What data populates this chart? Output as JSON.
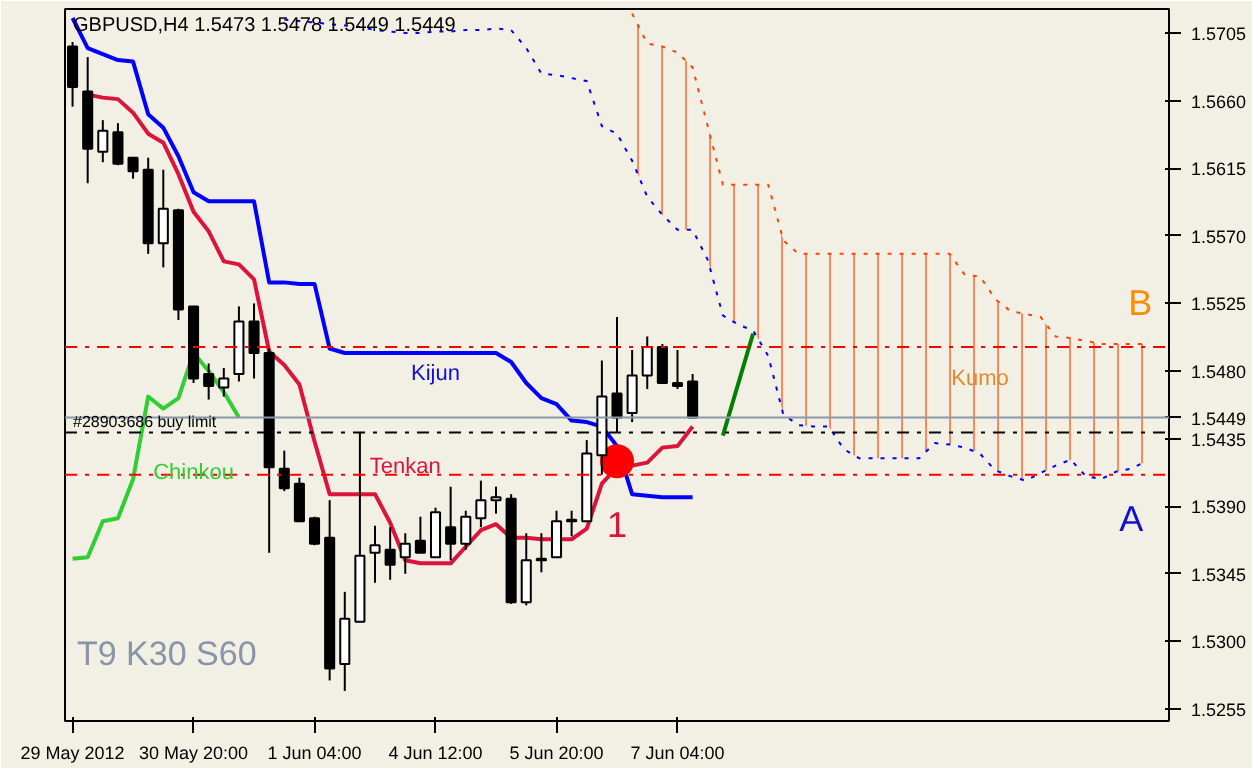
{
  "chart_data": {
    "type": "candlestick",
    "title": "GBPUSD,H4  1.5473 1.5478 1.5449 1.5449",
    "categories": [
      "29 May 2012",
      null,
      null,
      null,
      null,
      null,
      null,
      null,
      "30 May 20:00",
      null,
      null,
      null,
      null,
      null,
      null,
      null,
      "1 Jun 04:00",
      null,
      null,
      null,
      null,
      null,
      null,
      null,
      "4 Jun 12:00",
      null,
      null,
      null,
      null,
      null,
      null,
      null,
      "5 Jun 20:00",
      null,
      null,
      null,
      null,
      null,
      null,
      null,
      "7 Jun 04:00",
      null,
      null,
      null,
      null,
      null,
      null,
      null,
      null,
      null,
      null,
      null,
      null,
      null,
      null,
      null,
      null,
      null,
      null,
      null,
      null,
      null,
      null,
      null,
      null,
      null,
      null,
      null,
      null,
      null,
      null,
      null,
      null
    ],
    "ohlc": [
      [
        1.5696,
        1.5699,
        1.5656,
        1.5669
      ],
      [
        1.5666,
        1.5689,
        1.5605,
        1.5628
      ],
      [
        1.5626,
        1.5647,
        1.5619,
        1.564
      ],
      [
        1.5639,
        1.5645,
        1.5617,
        1.5618
      ],
      [
        1.5622,
        1.5622,
        1.5608,
        1.5613
      ],
      [
        1.5614,
        1.5622,
        1.5558,
        1.5565
      ],
      [
        1.5565,
        1.5614,
        1.5549,
        1.5588
      ],
      [
        1.5587,
        1.5588,
        1.5514,
        1.5521
      ],
      [
        1.5523,
        1.5523,
        1.5472,
        1.5475
      ],
      [
        1.5478,
        1.5485,
        1.5461,
        1.547
      ],
      [
        1.5469,
        1.5482,
        1.5463,
        1.5475
      ],
      [
        1.5478,
        1.5523,
        1.5473,
        1.5513
      ],
      [
        1.5513,
        1.5525,
        1.5475,
        1.5492
      ],
      [
        1.5492,
        1.5495,
        1.5359,
        1.5416
      ],
      [
        1.5415,
        1.5427,
        1.54,
        1.5402
      ],
      [
        1.5405,
        1.5409,
        1.538,
        1.538
      ],
      [
        1.5382,
        1.5383,
        1.5364,
        1.5365
      ],
      [
        1.5369,
        1.5394,
        1.5274,
        1.5282
      ],
      [
        1.5285,
        1.5333,
        1.5267,
        1.5315
      ],
      [
        1.5313,
        1.5439,
        1.5313,
        1.5357
      ],
      [
        1.5359,
        1.5377,
        1.5339,
        1.5364
      ],
      [
        1.5361,
        1.5376,
        1.5341,
        1.5351
      ],
      [
        1.5356,
        1.5372,
        1.5345,
        1.5365
      ],
      [
        1.5367,
        1.5383,
        1.5359,
        1.5359
      ],
      [
        1.5356,
        1.5389,
        1.5356,
        1.5386
      ],
      [
        1.5376,
        1.5403,
        1.5354,
        1.5365
      ],
      [
        1.5365,
        1.5387,
        1.5361,
        1.5383
      ],
      [
        1.5382,
        1.5407,
        1.5376,
        1.5394
      ],
      [
        1.5394,
        1.5403,
        1.5385,
        1.5396
      ],
      [
        1.5395,
        1.5398,
        1.5325,
        1.5326
      ],
      [
        1.5326,
        1.5372,
        1.5324,
        1.5354
      ],
      [
        1.5355,
        1.5372,
        1.5346,
        1.5354
      ],
      [
        1.5356,
        1.5387,
        1.5356,
        1.538
      ],
      [
        1.5381,
        1.5387,
        1.537,
        1.538
      ],
      [
        1.538,
        1.5434,
        1.538,
        1.5425
      ],
      [
        1.5424,
        1.5487,
        1.5411,
        1.5463
      ],
      [
        1.5465,
        1.5516,
        1.5439,
        1.5449
      ],
      [
        1.5452,
        1.5494,
        1.5446,
        1.5477
      ],
      [
        1.5477,
        1.5503,
        1.5468,
        1.5496
      ],
      [
        1.5496,
        1.5498,
        1.5472,
        1.5472
      ],
      [
        1.5472,
        1.5494,
        1.5468,
        1.547
      ],
      [
        1.5473,
        1.5478,
        1.5449,
        1.5449
      ],
      null,
      null,
      null,
      null,
      null,
      null,
      null,
      null,
      null,
      null,
      null,
      null,
      null,
      null,
      null,
      null,
      null,
      null,
      null,
      null,
      null,
      null,
      null,
      null,
      null,
      null,
      null,
      null,
      null,
      null,
      null
    ],
    "series": [
      {
        "type": "line",
        "color": "#0000ff",
        "line_style": "solid",
        "values": [
          1.5715,
          1.5695,
          1.5691,
          1.5687,
          1.5686,
          1.5651,
          1.5642,
          1.5623,
          1.5599,
          1.5593,
          1.5593,
          1.5593,
          1.5593,
          1.5539,
          1.5539,
          1.5538,
          1.5538,
          1.5495,
          1.5492,
          1.5492,
          1.5492,
          1.5492,
          1.5492,
          1.5492,
          1.5492,
          1.5492,
          1.5492,
          1.5492,
          1.5492,
          1.5486,
          1.5472,
          1.5462,
          1.5458,
          1.5447,
          1.5446,
          1.5443,
          1.543,
          1.5398,
          1.5397,
          1.5396,
          1.5396,
          1.5396,
          null,
          null,
          null,
          null,
          null,
          null,
          null,
          null,
          null,
          null,
          null,
          null,
          null,
          null,
          null,
          null,
          null,
          null,
          null,
          null,
          null,
          null,
          null,
          null,
          null,
          null,
          null,
          null,
          null,
          null,
          null
        ]
      },
      {
        "type": "line",
        "color": "#dc143c",
        "line_style": "solid",
        "values": [
          null,
          1.5664,
          1.5662,
          1.5661,
          1.5652,
          1.5638,
          1.5632,
          1.5611,
          1.5586,
          1.5573,
          1.5553,
          1.5551,
          1.5541,
          1.5493,
          1.5484,
          1.5471,
          1.5433,
          1.5398,
          1.5398,
          1.5398,
          1.5398,
          1.5379,
          1.5354,
          1.5352,
          1.5352,
          1.5352,
          1.5363,
          1.5374,
          1.5378,
          1.5369,
          1.5369,
          1.5368,
          1.5368,
          1.5368,
          1.5375,
          1.5405,
          1.5416,
          1.5417,
          1.5419,
          1.5429,
          1.543,
          1.5443,
          null,
          null,
          null,
          null,
          null,
          null,
          null,
          null,
          null,
          null,
          null,
          null,
          null,
          null,
          null,
          null,
          null,
          null,
          null,
          null,
          null,
          null,
          null,
          null,
          null,
          null,
          null,
          null,
          null,
          null,
          null
        ]
      },
      {
        "type": "line",
        "color": "#32cd32",
        "line_style": "solid",
        "values": [
          1.5355,
          1.5356,
          1.538,
          1.5382,
          1.5408,
          1.5463,
          1.5455,
          1.5462,
          1.5492,
          1.548,
          1.5466,
          1.5449,
          null,
          null,
          null,
          null,
          null,
          null,
          null,
          null,
          null,
          null,
          null,
          null,
          null,
          null,
          null,
          null,
          null,
          null,
          null,
          null,
          null,
          null,
          null,
          null,
          null,
          null,
          null,
          null,
          null,
          null,
          null,
          null,
          null,
          null,
          null,
          null,
          null,
          null,
          null,
          null,
          null,
          null,
          null,
          null,
          null,
          null,
          null,
          null,
          null,
          null,
          null,
          null,
          null,
          null,
          null,
          null,
          null,
          null,
          null,
          null,
          null
        ]
      },
      {
        "type": "line",
        "color": "#008000",
        "line_style": "solid",
        "values": [
          null,
          null,
          null,
          null,
          null,
          null,
          null,
          null,
          null,
          null,
          null,
          null,
          null,
          null,
          null,
          null,
          null,
          null,
          null,
          null,
          null,
          null,
          null,
          null,
          null,
          null,
          null,
          null,
          null,
          null,
          null,
          null,
          null,
          null,
          null,
          null,
          null,
          null,
          null,
          null,
          null,
          null,
          null,
          1.5437,
          1.5471,
          1.5505,
          null,
          null,
          null,
          null,
          null,
          null,
          null,
          null,
          null,
          null,
          null,
          null,
          null,
          null,
          null,
          null,
          null,
          null,
          null,
          null,
          null,
          null,
          null,
          null,
          null,
          null,
          null
        ]
      },
      {
        "type": "line",
        "color": "#0000ff",
        "line_style": "dotted",
        "values": [
          null,
          null,
          null,
          null,
          null,
          null,
          null,
          null,
          null,
          null,
          null,
          null,
          null,
          null,
          1.5714,
          1.5713,
          1.5712,
          1.5711,
          1.571,
          1.5709,
          1.5707,
          1.5706,
          1.5705,
          1.5705,
          1.5706,
          1.5706,
          1.5707,
          1.5707,
          1.5708,
          1.5707,
          1.5695,
          1.5678,
          1.5677,
          1.5675,
          1.5673,
          1.5643,
          1.5638,
          1.562,
          1.5596,
          1.5584,
          1.5574,
          1.5574,
          1.5554,
          1.5517,
          1.5511,
          1.5507,
          1.549,
          1.5451,
          1.5444,
          1.5443,
          1.5443,
          1.5428,
          1.5422,
          1.5422,
          1.5422,
          1.5422,
          1.5422,
          1.5432,
          1.5431,
          1.5429,
          1.5425,
          1.5414,
          1.541,
          1.5407,
          1.5412,
          1.5417,
          1.5421,
          1.541,
          1.5408,
          1.5413,
          1.5415,
          1.542,
          null
        ]
      },
      {
        "type": "line",
        "color": "#ff4500",
        "line_style": "dotted",
        "lower": [
          null,
          null,
          null,
          null,
          null,
          null,
          null,
          null,
          null,
          null,
          null,
          null,
          null,
          null,
          null,
          null,
          null,
          null,
          null,
          null,
          null,
          null,
          null,
          null,
          null,
          null,
          null,
          null,
          null,
          null,
          null,
          null,
          null,
          null,
          null,
          null,
          null,
          1.562,
          1.5596,
          1.5584,
          1.5574,
          1.5574,
          1.5554,
          1.5517,
          1.5511,
          1.5507,
          1.549,
          1.5451,
          1.5444,
          1.5443,
          1.5443,
          1.5428,
          1.5422,
          1.5422,
          1.5422,
          1.5422,
          1.5422,
          1.5432,
          1.5431,
          1.5429,
          1.5425,
          1.5414,
          1.541,
          1.5407,
          1.5412,
          1.5417,
          1.5421,
          1.541,
          1.5408,
          1.5413,
          1.5415,
          1.542,
          null
        ],
        "upper": [
          null,
          null,
          null,
          null,
          null,
          null,
          null,
          null,
          null,
          null,
          null,
          null,
          null,
          null,
          null,
          null,
          null,
          null,
          null,
          null,
          null,
          null,
          null,
          null,
          null,
          null,
          null,
          null,
          null,
          null,
          null,
          null,
          null,
          null,
          null,
          null,
          null,
          1.5718,
          1.5698,
          1.5696,
          1.5692,
          1.5682,
          1.5643,
          1.5604,
          1.5604,
          1.5604,
          1.5604,
          1.5567,
          1.5558,
          1.5558,
          1.5558,
          1.5558,
          1.5558,
          1.5558,
          1.5558,
          1.5558,
          1.5558,
          1.5558,
          1.5558,
          1.5544,
          1.5543,
          1.5528,
          1.552,
          1.5518,
          1.5516,
          1.5503,
          1.5502,
          1.55,
          1.5498,
          1.5498,
          1.5498,
          1.5498,
          null
        ],
        "values": [
          null,
          null,
          null,
          null,
          null,
          null,
          null,
          null,
          null,
          null,
          null,
          null,
          null,
          null,
          null,
          null,
          null,
          null,
          null,
          null,
          null,
          null,
          null,
          null,
          null,
          null,
          null,
          null,
          null,
          null,
          null,
          null,
          null,
          null,
          null,
          null,
          null,
          1.5718,
          1.5698,
          1.5696,
          1.5692,
          1.5682,
          1.5643,
          1.5604,
          1.5604,
          1.5604,
          1.5604,
          1.5567,
          1.5558,
          1.5558,
          1.5558,
          1.5558,
          1.5558,
          1.5558,
          1.5558,
          1.5558,
          1.5558,
          1.5558,
          1.5558,
          1.5544,
          1.5543,
          1.5528,
          1.552,
          1.5518,
          1.5516,
          1.5503,
          1.5502,
          1.55,
          1.5498,
          1.5498,
          1.5498,
          1.5498,
          null
        ]
      },
      {
        "type": "scatter",
        "color": "#ff0000",
        "marker": "circle",
        "values": [
          null,
          null,
          null,
          null,
          null,
          null,
          null,
          null,
          null,
          null,
          null,
          null,
          null,
          null,
          null,
          null,
          null,
          null,
          null,
          null,
          null,
          null,
          null,
          null,
          null,
          null,
          null,
          null,
          null,
          null,
          null,
          null,
          null,
          null,
          null,
          null,
          1.542,
          null,
          null,
          null,
          null,
          null,
          null,
          null,
          null,
          null,
          null,
          null,
          null,
          null,
          null,
          null,
          null,
          null,
          null,
          null,
          null,
          null,
          null,
          null,
          null,
          null,
          null,
          null,
          null,
          null,
          null,
          null,
          null,
          null,
          null,
          null,
          null
        ]
      }
    ],
    "ylim": [
      1.5247,
      1.5721
    ],
    "yticks": [
      {
        "value": 1.5255,
        "label": "1.5255"
      },
      {
        "value": 1.53,
        "label": "1.5300"
      },
      {
        "value": 1.5345,
        "label": "1.5345"
      },
      {
        "value": 1.539,
        "label": "1.5390"
      },
      {
        "value": 1.5435,
        "label": "1.5435"
      },
      {
        "value": 1.548,
        "label": "1.5480"
      },
      {
        "value": 1.5525,
        "label": "1.5525"
      },
      {
        "value": 1.557,
        "label": "1.5570"
      },
      {
        "value": 1.5615,
        "label": "1.5615"
      },
      {
        "value": 1.566,
        "label": "1.5660"
      },
      {
        "value": 1.5705,
        "label": "1.5705"
      }
    ],
    "ref_lines": [
      {
        "axis": "y",
        "value": 1.5496,
        "color": "#ff0000",
        "line_style": "dashdot"
      },
      {
        "axis": "y",
        "value": 1.5411,
        "color": "#ff0000",
        "line_style": "dashdot"
      },
      {
        "axis": "y",
        "value": 1.5439,
        "label": "#28903686 buy limit",
        "color": "#000000",
        "line_style": "dashdot"
      },
      {
        "axis": "y",
        "value": 1.5449,
        "label": "1.5449",
        "color": "#8a98a8",
        "line_style": "solid"
      }
    ],
    "annotations": [
      "Kijun",
      "Tenkan",
      "Chinkou",
      "Kumo",
      "1",
      {
        "text": "B",
        "y": 1.5496
      },
      {
        "text": "A",
        "y": 1.5411
      },
      "T9 K30 S60"
    ],
    "grid": false
  }
}
